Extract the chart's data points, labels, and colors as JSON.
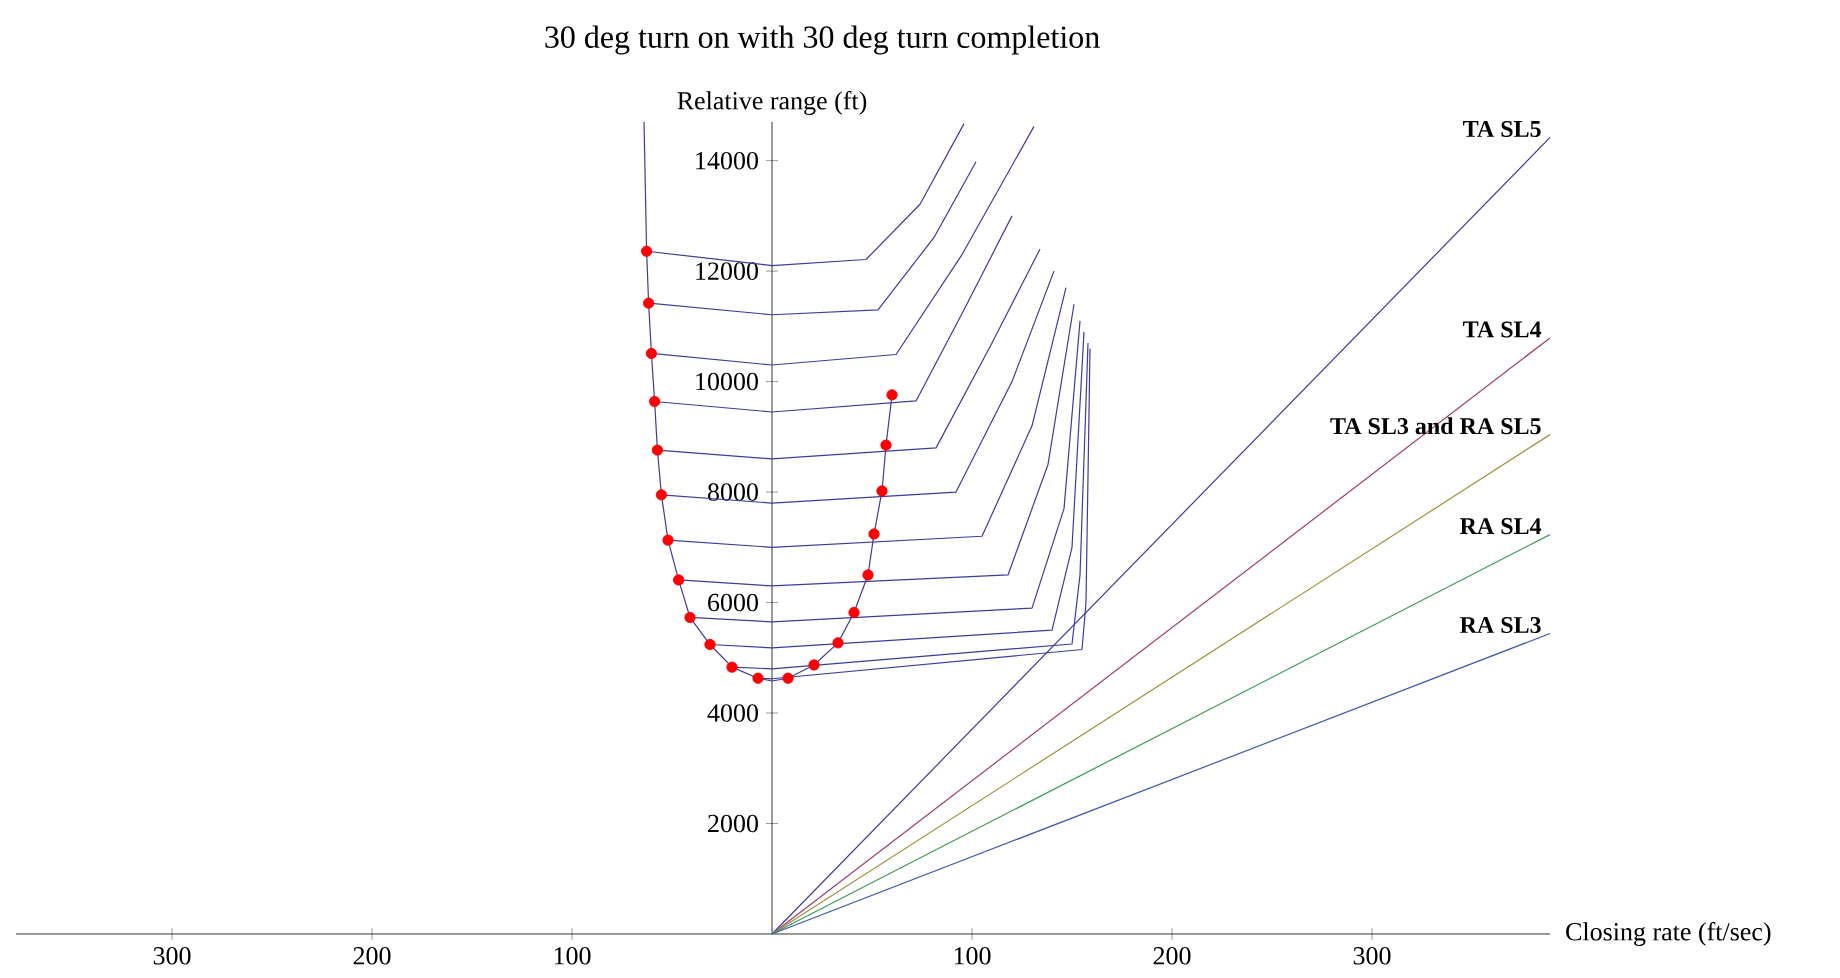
{
  "chart_data": {
    "type": "line",
    "title": "30 deg turn on with 30 deg turn completion",
    "xlabel": "Closing rate (ft/sec)",
    "ylabel": "Relative range (ft)",
    "xlim": [
      -378,
      389
    ],
    "ylim": [
      0,
      14700
    ],
    "xticks": [
      {
        "value": -300,
        "label": "300"
      },
      {
        "value": -200,
        "label": "200"
      },
      {
        "value": -100,
        "label": "100"
      },
      100,
      200,
      300
    ],
    "yticks": [
      2000,
      4000,
      6000,
      8000,
      10000,
      12000,
      14000
    ],
    "series": [
      {
        "color": "#3c3c9a",
        "x": [
          -62.7,
          0,
          47,
          74,
          96
        ],
        "values": [
          12360,
          12100,
          12210,
          13210,
          14670
        ]
      },
      {
        "color": "#3c3c9a",
        "x": [
          -61.7,
          0,
          53,
          81,
          102
        ],
        "values": [
          11420,
          11210,
          11300,
          12610,
          13980
        ]
      },
      {
        "color": "#3c3c9a",
        "x": [
          -60.3,
          0,
          62,
          95,
          131
        ],
        "values": [
          10510,
          10300,
          10490,
          12300,
          14620
        ]
      },
      {
        "color": "#3c3c9a",
        "x": [
          -58.7,
          0,
          72,
          96,
          120
        ],
        "values": [
          9640,
          9450,
          9650,
          11300,
          13000
        ]
      },
      {
        "color": "#3c3c9a",
        "x": [
          -57.3,
          0,
          82,
          110,
          134
        ],
        "values": [
          8760,
          8600,
          8800,
          10700,
          12400
        ]
      },
      {
        "color": "#3c3c9a",
        "x": [
          -55.3,
          0,
          92,
          120,
          141
        ],
        "values": [
          7950,
          7800,
          8000,
          10000,
          12000
        ]
      },
      {
        "color": "#3c3c9a",
        "x": [
          -52,
          0,
          105,
          130,
          147
        ],
        "values": [
          7130,
          7000,
          7200,
          9200,
          11700
        ]
      },
      {
        "color": "#3c3c9a",
        "x": [
          -46.7,
          0,
          118,
          138,
          151
        ],
        "values": [
          6410,
          6300,
          6500,
          8500,
          11400
        ]
      },
      {
        "color": "#3c3c9a",
        "x": [
          -41,
          0,
          130,
          146,
          154
        ],
        "values": [
          5730,
          5650,
          5900,
          7700,
          11100
        ]
      },
      {
        "color": "#3c3c9a",
        "x": [
          -31,
          0,
          140,
          150,
          156
        ],
        "values": [
          5240,
          5180,
          5500,
          7000,
          10900
        ]
      },
      {
        "color": "#3c3c9a",
        "x": [
          -20,
          0,
          150,
          154,
          158
        ],
        "values": [
          4830,
          4800,
          5250,
          6500,
          10700
        ]
      },
      {
        "color": "#3c3c9a",
        "x": [
          -7,
          0,
          155,
          157,
          159
        ],
        "values": [
          4630,
          4620,
          5150,
          6000,
          10600
        ]
      },
      {
        "color": "#3c3c9a",
        "x": [
          -64,
          -62.7,
          -61.7,
          -60.3,
          -58.7,
          -57.3,
          -55.3,
          -52,
          -46.7,
          -41,
          -31,
          -20,
          -7,
          0,
          8,
          21,
          33,
          41,
          48,
          51,
          55,
          57,
          60
        ],
        "values": [
          14700,
          12360,
          11420,
          10510,
          9640,
          8760,
          7950,
          7130,
          6410,
          5730,
          5240,
          4830,
          4630,
          4580,
          4630,
          4870,
          5270,
          5820,
          6500,
          7240,
          8020,
          8850,
          9760
        ]
      },
      {
        "name": "TA SL5",
        "color": "#3c3c9e",
        "x": [
          0,
          389
        ],
        "values": [
          0,
          14420
        ]
      },
      {
        "name": "TA SL4",
        "color": "#a03c6e",
        "x": [
          0,
          389
        ],
        "values": [
          0,
          10790
        ]
      },
      {
        "name": "TA SL3 and RA SL5",
        "color": "#a0913c",
        "x": [
          0,
          389
        ],
        "values": [
          0,
          9040
        ]
      },
      {
        "name": "RA SL4",
        "color": "#3c9b55",
        "x": [
          0,
          389
        ],
        "values": [
          0,
          7230
        ]
      },
      {
        "name": "RA SL3",
        "color": "#3c5aaa",
        "x": [
          0,
          389
        ],
        "values": [
          0,
          5440
        ]
      },
      {
        "type": "scatter",
        "marker": "circle",
        "color": "#ff0000",
        "x": [
          -62.7,
          -61.7,
          -60.3,
          -58.7,
          -57.3,
          -55.3,
          -52,
          -46.7,
          -41,
          -31,
          -20,
          -7,
          8,
          21,
          33,
          41,
          48,
          51,
          55,
          57,
          60
        ],
        "values": [
          12360,
          11420,
          10510,
          9640,
          8760,
          7950,
          7130,
          6410,
          5730,
          5240,
          4830,
          4630,
          4630,
          4870,
          5270,
          5820,
          6500,
          7240,
          8020,
          8850,
          9760
        ]
      }
    ]
  }
}
